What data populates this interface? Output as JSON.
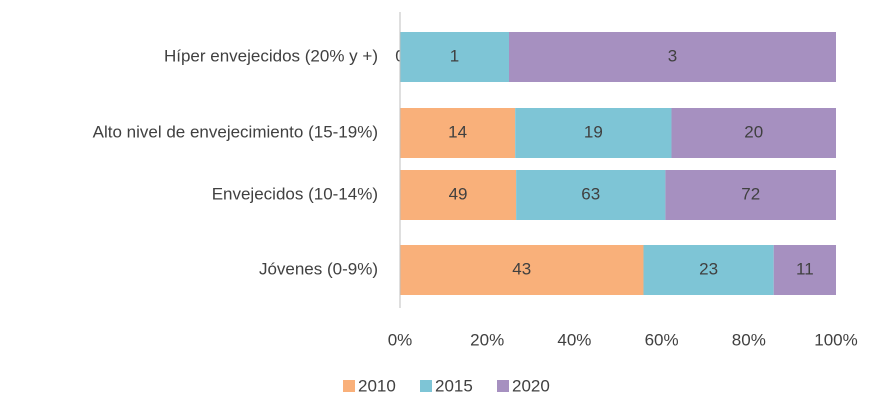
{
  "chart_data": {
    "type": "bar",
    "orientation": "horizontal",
    "stack": "percent",
    "categories": [
      "Híper envejecidos (20% y +)",
      "Alto nivel de envejecimiento (15-19%)",
      "Envejecidos (10-14%)",
      "Jóvenes (0-9%)"
    ],
    "series": [
      {
        "name": "2010",
        "color": "#f9b07a",
        "values": [
          0,
          14,
          49,
          43
        ]
      },
      {
        "name": "2015",
        "color": "#7ec5d6",
        "values": [
          1,
          19,
          63,
          23
        ]
      },
      {
        "name": "2020",
        "color": "#a690c0",
        "values": [
          3,
          20,
          72,
          11
        ]
      }
    ],
    "xlim": [
      0,
      100
    ],
    "xticks": [
      {
        "value": 0,
        "label": "0%"
      },
      {
        "value": 20,
        "label": "20%"
      },
      {
        "value": 40,
        "label": "40%"
      },
      {
        "value": 60,
        "label": "60%"
      },
      {
        "value": 80,
        "label": "80%"
      },
      {
        "value": 100,
        "label": "100%"
      }
    ],
    "legend": "bottom"
  }
}
